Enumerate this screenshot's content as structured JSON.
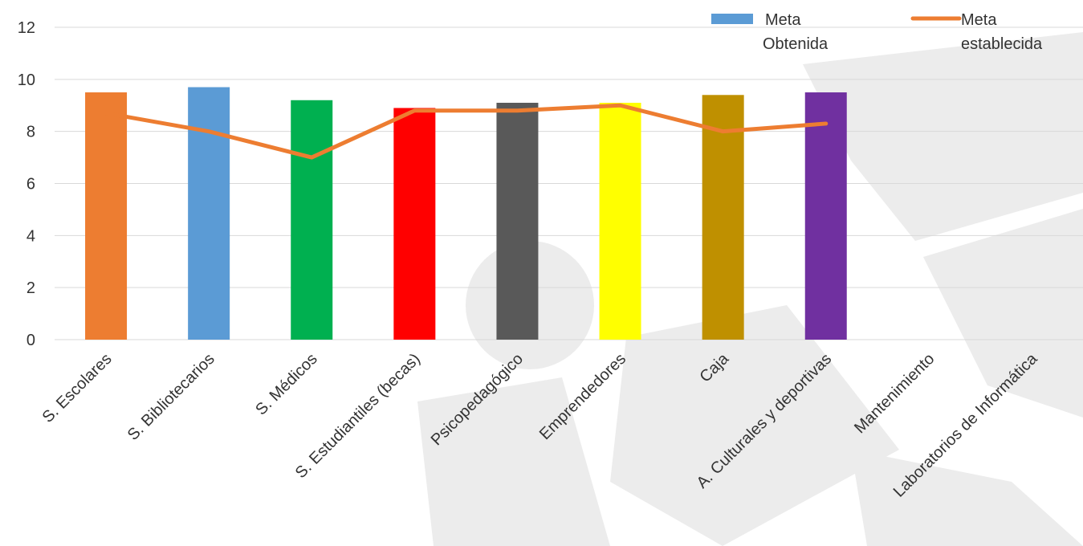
{
  "chart_data": {
    "type": "bar",
    "categories": [
      "S. Escolares",
      "S. Bibliotecarios",
      "S. Médicos",
      "S. Estudiantiles (becas)",
      "Psicopedagógico",
      "Emprendedores",
      "Caja",
      "A. Culturales y deportivas",
      "Mantenimiento",
      "Laboratorios de Informática"
    ],
    "series": [
      {
        "name": "Meta Obtenida",
        "kind": "bar",
        "values": [
          9.5,
          9.7,
          9.2,
          8.9,
          9.1,
          9.1,
          9.4,
          9.5,
          null,
          null
        ],
        "colors": [
          "#ed7d31",
          "#5b9bd5",
          "#00b050",
          "#ff0000",
          "#595959",
          "#ffff00",
          "#bf9000",
          "#7030a0",
          null,
          null
        ]
      },
      {
        "name": "Meta establecida",
        "kind": "line",
        "color": "#ed7d31",
        "values": [
          8.7,
          8.0,
          7.0,
          8.8,
          8.8,
          9.0,
          8.0,
          8.3,
          null,
          null
        ]
      }
    ],
    "ylim": [
      0,
      12
    ],
    "yticks": [
      "0",
      "2",
      "4",
      "6",
      "8",
      "10",
      "12"
    ],
    "grid": true,
    "legend_position": "top-right",
    "legend": [
      {
        "label_lines": [
          "Meta",
          "Obtenida"
        ],
        "swatch": "bar",
        "color": "#5b9bd5"
      },
      {
        "label_lines": [
          "Meta",
          "establecida"
        ],
        "swatch": "line",
        "color": "#ed7d31"
      }
    ]
  }
}
